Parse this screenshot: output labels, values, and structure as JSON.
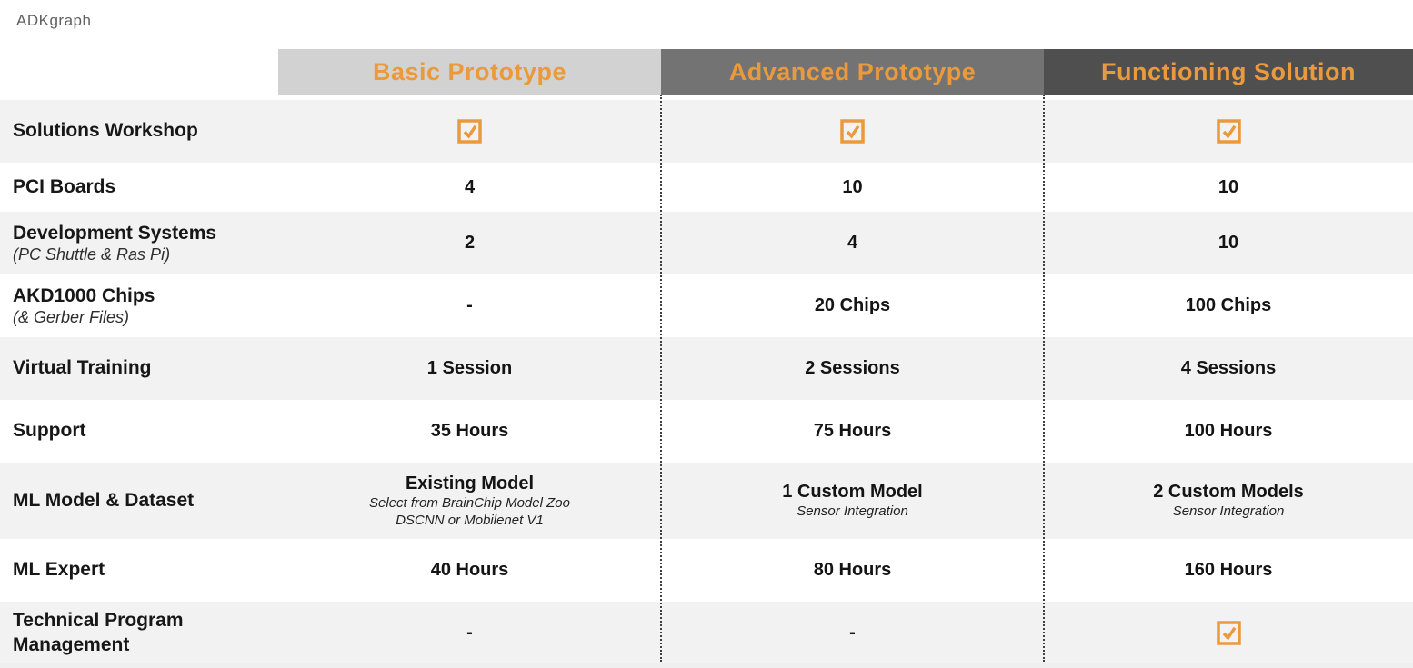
{
  "page": {
    "title": "ADKgraph"
  },
  "colors": {
    "accent_orange": "#EA9A3C",
    "header_bg_basic": "#D2D2D2",
    "header_bg_advanced": "#737373",
    "header_bg_functioning": "#4F4F4F",
    "row_alt_bg": "#F2F2F2",
    "separator": "#3F3F3F"
  },
  "table": {
    "columns": [
      {
        "label": "Basic Prototype",
        "bg": "#D2D2D2"
      },
      {
        "label": "Advanced Prototype",
        "bg": "#737373"
      },
      {
        "label": "Functioning Solution",
        "bg": "#4F4F4F"
      }
    ],
    "rows": [
      {
        "label": "Solutions Workshop",
        "cells": [
          {
            "check": true
          },
          {
            "check": true
          },
          {
            "check": true
          }
        ]
      },
      {
        "label": "PCI Boards",
        "cells": [
          {
            "text": "4"
          },
          {
            "text": "10"
          },
          {
            "text": "10"
          }
        ]
      },
      {
        "label": "Development Systems",
        "sublabel": "(PC Shuttle & Ras Pi)",
        "cells": [
          {
            "text": "2"
          },
          {
            "text": "4"
          },
          {
            "text": "10"
          }
        ]
      },
      {
        "label": "AKD1000 Chips",
        "sublabel": "(& Gerber Files)",
        "cells": [
          {
            "text": "-"
          },
          {
            "text": "20 Chips"
          },
          {
            "text": "100 Chips"
          }
        ]
      },
      {
        "label": "Virtual Training",
        "cells": [
          {
            "text": "1 Session"
          },
          {
            "text": "2 Sessions"
          },
          {
            "text": "4 Sessions"
          }
        ]
      },
      {
        "label": "Support",
        "cells": [
          {
            "text": "35 Hours"
          },
          {
            "text": "75 Hours"
          },
          {
            "text": "100 Hours"
          }
        ]
      },
      {
        "label": "ML Model & Dataset",
        "cells": [
          {
            "text": "Existing Model",
            "subs": [
              "Select from BrainChip Model Zoo",
              "DSCNN or Mobilenet V1"
            ]
          },
          {
            "text": "1 Custom Model",
            "subs": [
              "Sensor Integration"
            ]
          },
          {
            "text": "2 Custom Models",
            "subs": [
              "Sensor Integration"
            ]
          }
        ]
      },
      {
        "label": "ML Expert",
        "cells": [
          {
            "text": "40 Hours"
          },
          {
            "text": "80 Hours"
          },
          {
            "text": "160 Hours"
          }
        ]
      },
      {
        "label": "Technical Program Management",
        "cells": [
          {
            "text": "-"
          },
          {
            "text": "-"
          },
          {
            "check": true
          }
        ]
      }
    ]
  }
}
